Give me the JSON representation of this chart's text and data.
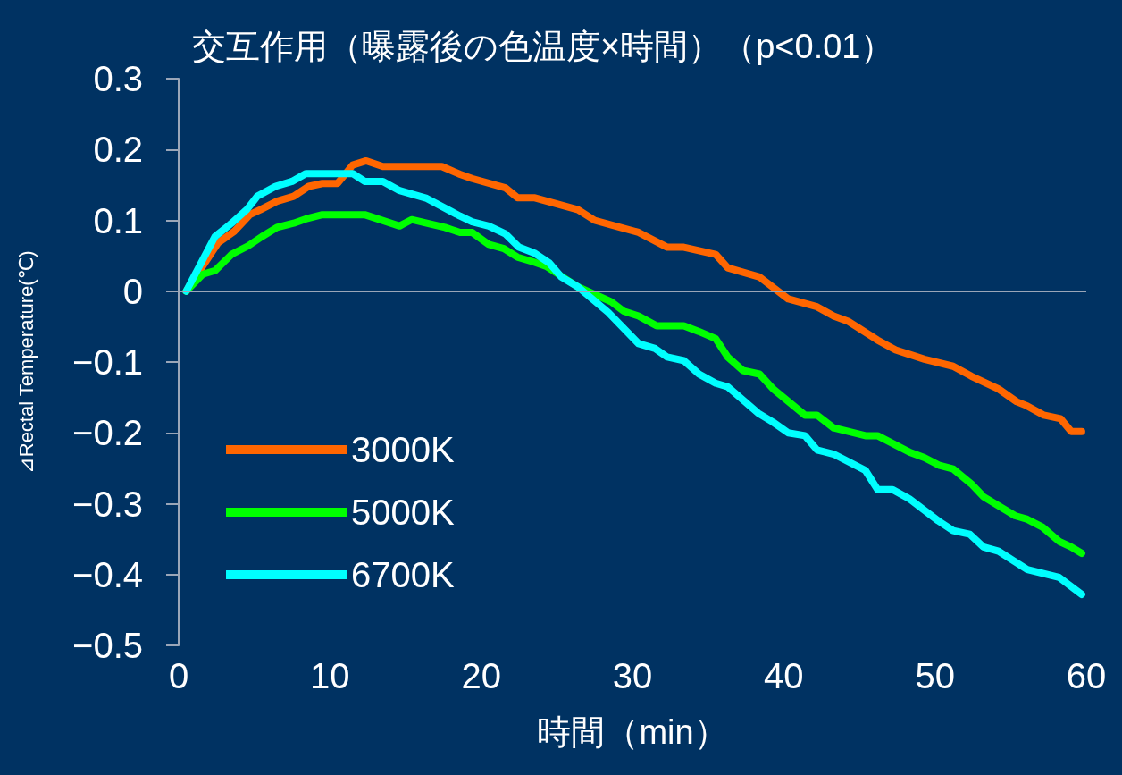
{
  "chart_data": {
    "type": "line",
    "title": "交互作用（曝露後の色温度×時間）（p<0.01）",
    "xlabel": "時間（min）",
    "ylabel": "⊿Rectal Temperature(℃)",
    "xlim": [
      0,
      60
    ],
    "xticks": [
      0,
      10,
      20,
      30,
      40,
      50,
      60
    ],
    "ylim": [
      -0.5,
      0.3
    ],
    "yticks": [
      -0.5,
      -0.4,
      -0.3,
      -0.2,
      -0.1,
      0,
      0.1,
      0.2,
      0.3
    ],
    "grid": false,
    "ref_lines": [
      {
        "axis": "y",
        "value": 0,
        "color": "#9aa6b8"
      }
    ],
    "legend": "bottom left",
    "marker": "none",
    "line_style": "solid",
    "series": [
      {
        "name": "3000K",
        "color": "#ff6600",
        "x": [
          0.5,
          2.6,
          3.7,
          4.7,
          5.4,
          6.5,
          7.6,
          8.6,
          9.5,
          10.5,
          11.5,
          12.4,
          13.5,
          17.4,
          18.6,
          19.4,
          21.6,
          22.4,
          23.5,
          26.4,
          27.5,
          30.4,
          32.3,
          33.4,
          35.5,
          36.3,
          38.4,
          40.3,
          42.2,
          43.3,
          44.3,
          46.2,
          47.4,
          49.3,
          51.2,
          52.4,
          54.2,
          55.4,
          56.1,
          57.2,
          58.3,
          59.0,
          59.7
        ],
        "values": [
          0,
          0.068,
          0.085,
          0.108,
          0.115,
          0.127,
          0.134,
          0.148,
          0.152,
          0.152,
          0.178,
          0.184,
          0.176,
          0.176,
          0.165,
          0.159,
          0.146,
          0.132,
          0.132,
          0.115,
          0.1,
          0.083,
          0.062,
          0.062,
          0.052,
          0.033,
          0.02,
          -0.011,
          -0.022,
          -0.035,
          -0.043,
          -0.069,
          -0.083,
          -0.096,
          -0.106,
          -0.12,
          -0.138,
          -0.156,
          -0.162,
          -0.175,
          -0.18,
          -0.198,
          -0.198
        ]
      },
      {
        "name": "5000K",
        "color": "#00ff00",
        "x": [
          0.5,
          1.6,
          2.4,
          3.5,
          4.6,
          5.5,
          6.5,
          7.6,
          8.4,
          9.5,
          12.3,
          14.6,
          15.4,
          17.6,
          18.6,
          19.4,
          20.5,
          21.5,
          22.4,
          23.5,
          24.3,
          26.4,
          28.6,
          29.4,
          30.4,
          31.6,
          33.4,
          34.4,
          35.5,
          36.3,
          37.3,
          38.4,
          39.3,
          41.4,
          42.2,
          43.3,
          45.4,
          46.2,
          48.3,
          49.3,
          50.3,
          51.2,
          52.4,
          53.2,
          55.3,
          56.1,
          57.1,
          58.2,
          59.0,
          59.7
        ],
        "values": [
          0,
          0.024,
          0.029,
          0.052,
          0.064,
          0.077,
          0.09,
          0.096,
          0.102,
          0.108,
          0.108,
          0.092,
          0.101,
          0.09,
          0.083,
          0.083,
          0.066,
          0.06,
          0.048,
          0.041,
          0.035,
          0.006,
          -0.015,
          -0.028,
          -0.035,
          -0.049,
          -0.049,
          -0.057,
          -0.067,
          -0.093,
          -0.112,
          -0.117,
          -0.138,
          -0.175,
          -0.175,
          -0.193,
          -0.204,
          -0.204,
          -0.227,
          -0.235,
          -0.246,
          -0.251,
          -0.272,
          -0.29,
          -0.317,
          -0.322,
          -0.333,
          -0.353,
          -0.361,
          -0.37
        ]
      },
      {
        "name": "6700K",
        "color": "#00ffff",
        "x": [
          0.5,
          2.4,
          3.5,
          4.5,
          5.2,
          6.4,
          7.5,
          8.4,
          11.5,
          12.3,
          13.5,
          14.6,
          16.4,
          18.6,
          19.4,
          20.5,
          21.6,
          22.5,
          23.5,
          24.5,
          25.3,
          26.4,
          28.4,
          30.4,
          31.5,
          32.3,
          33.4,
          34.4,
          35.5,
          36.3,
          38.3,
          39.3,
          40.3,
          41.4,
          42.2,
          43.3,
          45.4,
          46.2,
          47.2,
          48.3,
          50.2,
          51.2,
          52.3,
          53.2,
          54.2,
          56.1,
          58.2,
          59.7
        ],
        "values": [
          0,
          0.077,
          0.096,
          0.115,
          0.134,
          0.148,
          0.155,
          0.166,
          0.166,
          0.155,
          0.155,
          0.142,
          0.131,
          0.106,
          0.098,
          0.092,
          0.081,
          0.062,
          0.054,
          0.04,
          0.02,
          0.006,
          -0.03,
          -0.074,
          -0.081,
          -0.093,
          -0.098,
          -0.117,
          -0.13,
          -0.135,
          -0.172,
          -0.185,
          -0.2,
          -0.204,
          -0.224,
          -0.23,
          -0.253,
          -0.28,
          -0.28,
          -0.293,
          -0.324,
          -0.338,
          -0.343,
          -0.361,
          -0.367,
          -0.393,
          -0.404,
          -0.428
        ]
      }
    ]
  }
}
